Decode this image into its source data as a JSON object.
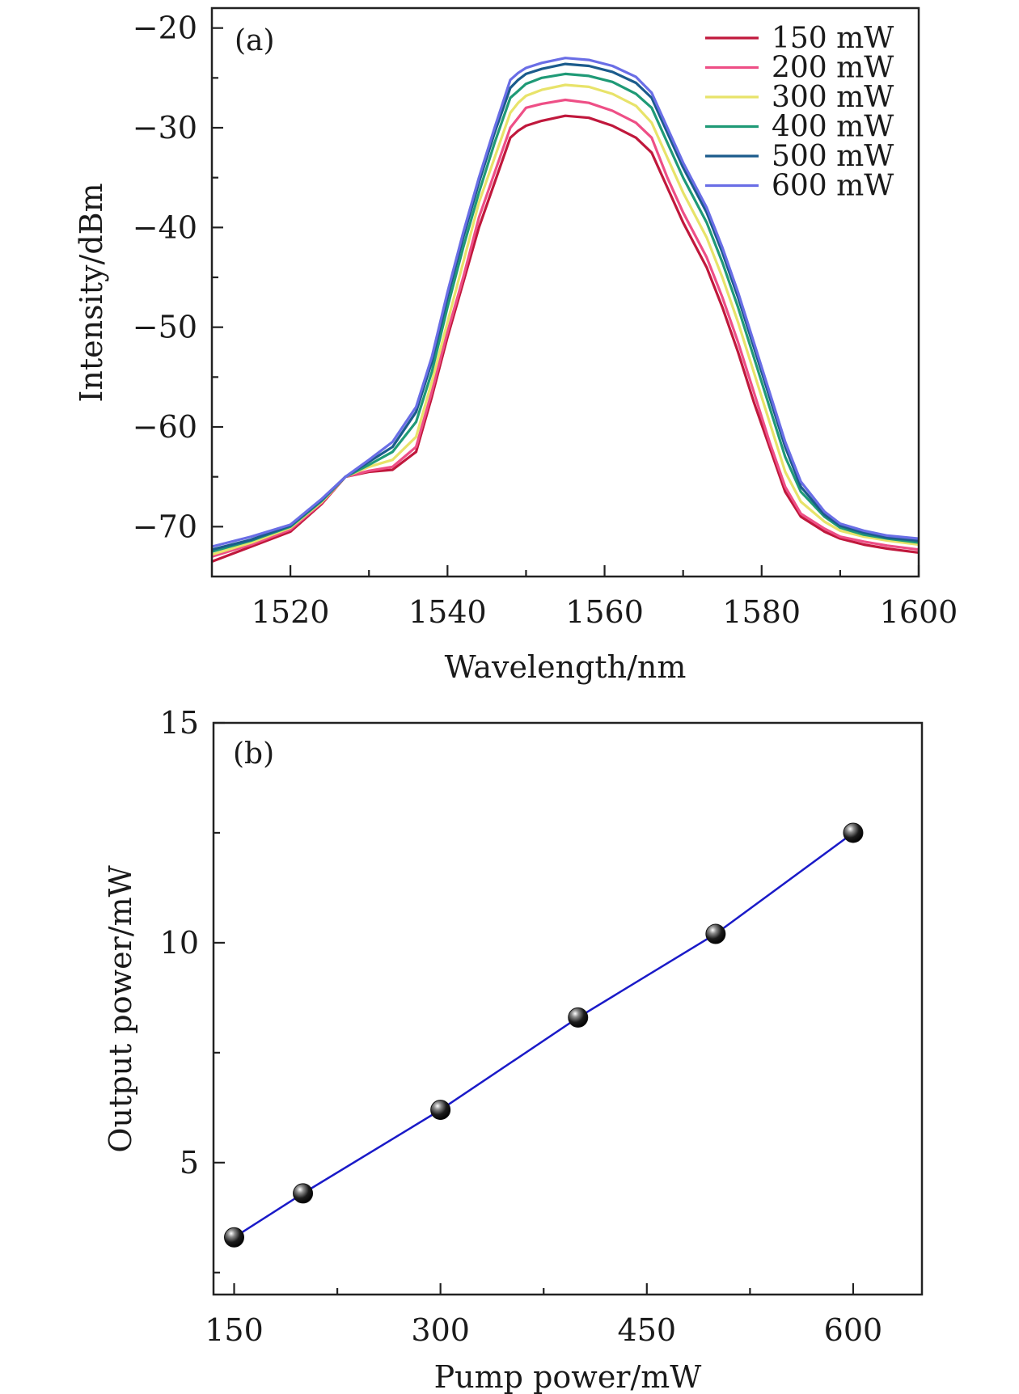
{
  "chart_data": [
    {
      "type": "line",
      "panel_label": "(a)",
      "xlabel": "Wavelength/nm",
      "ylabel": "Intensity/dBm",
      "xlim": [
        1510,
        1600
      ],
      "ylim": [
        -75,
        -18
      ],
      "x_ticks": [
        1520,
        1540,
        1560,
        1580,
        1600
      ],
      "x_tick_labels": [
        "1520",
        "1540",
        "1560",
        "1580",
        "1600"
      ],
      "y_ticks": [
        -20,
        -30,
        -40,
        -50,
        -60,
        -70
      ],
      "y_tick_labels": [
        "−20",
        "−30",
        "−40",
        "−50",
        "−60",
        "−70"
      ],
      "legend_position": "top-right",
      "x": [
        1510,
        1515,
        1520,
        1524,
        1527,
        1530,
        1533,
        1536,
        1538,
        1540,
        1542,
        1544,
        1546,
        1548,
        1549,
        1550,
        1552,
        1555,
        1558,
        1561,
        1564,
        1566,
        1568,
        1570,
        1573,
        1575,
        1577,
        1579,
        1581,
        1583,
        1585,
        1588,
        1590,
        1593,
        1596,
        1600
      ],
      "series": [
        {
          "name": "150 mW",
          "color": "#c0183c",
          "values": [
            -73.5,
            -72.0,
            -70.5,
            -67.7,
            -65.0,
            -64.5,
            -64.3,
            -62.5,
            -57.0,
            -51.0,
            -45.5,
            -40.0,
            -35.5,
            -31.0,
            -30.3,
            -29.8,
            -29.3,
            -28.8,
            -29.0,
            -29.8,
            -31.0,
            -32.5,
            -36.0,
            -39.5,
            -44.0,
            -48.0,
            -52.5,
            -57.5,
            -62.0,
            -66.5,
            -69.0,
            -70.5,
            -71.2,
            -71.8,
            -72.2,
            -72.6
          ]
        },
        {
          "name": "200 mW",
          "color": "#ee4f86",
          "values": [
            -73.0,
            -71.8,
            -70.3,
            -67.6,
            -65.0,
            -64.4,
            -64.0,
            -62.0,
            -56.5,
            -50.5,
            -45.0,
            -39.0,
            -34.5,
            -30.0,
            -29.0,
            -28.0,
            -27.6,
            -27.2,
            -27.5,
            -28.3,
            -29.5,
            -31.0,
            -35.0,
            -38.5,
            -43.0,
            -47.0,
            -51.5,
            -56.5,
            -61.5,
            -66.0,
            -68.7,
            -70.2,
            -71.0,
            -71.5,
            -71.9,
            -72.3
          ]
        },
        {
          "name": "300 mW",
          "color": "#e8e36a",
          "values": [
            -72.8,
            -71.6,
            -70.1,
            -67.5,
            -65.0,
            -64.0,
            -63.3,
            -61.0,
            -55.5,
            -49.5,
            -43.5,
            -37.5,
            -33.0,
            -28.5,
            -27.5,
            -26.8,
            -26.2,
            -25.7,
            -25.9,
            -26.6,
            -27.8,
            -29.5,
            -33.0,
            -36.5,
            -41.0,
            -45.0,
            -49.5,
            -54.5,
            -59.5,
            -64.5,
            -67.5,
            -69.5,
            -70.4,
            -71.0,
            -71.4,
            -71.8
          ]
        },
        {
          "name": "400 mW",
          "color": "#1f9a76",
          "values": [
            -72.5,
            -71.4,
            -70.0,
            -67.4,
            -65.0,
            -63.8,
            -62.5,
            -59.5,
            -54.5,
            -48.0,
            -42.0,
            -36.5,
            -31.5,
            -27.0,
            -26.3,
            -25.6,
            -25.0,
            -24.6,
            -24.8,
            -25.4,
            -26.6,
            -28.0,
            -31.5,
            -35.0,
            -39.5,
            -43.5,
            -48.0,
            -53.0,
            -58.0,
            -63.0,
            -66.5,
            -69.0,
            -70.1,
            -70.8,
            -71.2,
            -71.6
          ]
        },
        {
          "name": "500 mW",
          "color": "#1b5b8c",
          "values": [
            -72.3,
            -71.3,
            -69.9,
            -67.3,
            -65.0,
            -63.5,
            -62.0,
            -58.5,
            -53.5,
            -47.0,
            -41.0,
            -35.5,
            -30.5,
            -26.0,
            -25.2,
            -24.6,
            -24.1,
            -23.6,
            -23.8,
            -24.4,
            -25.5,
            -27.0,
            -30.5,
            -34.0,
            -38.5,
            -42.5,
            -47.0,
            -52.0,
            -57.0,
            -62.0,
            -66.0,
            -68.8,
            -69.9,
            -70.6,
            -71.1,
            -71.4
          ]
        },
        {
          "name": "600 mW",
          "color": "#6a6ee6",
          "values": [
            -72.0,
            -71.0,
            -69.8,
            -67.2,
            -65.0,
            -63.3,
            -61.5,
            -58.0,
            -53.0,
            -46.5,
            -40.5,
            -35.0,
            -30.0,
            -25.2,
            -24.5,
            -24.0,
            -23.5,
            -23.0,
            -23.2,
            -23.8,
            -24.9,
            -26.5,
            -30.0,
            -33.5,
            -38.0,
            -42.0,
            -46.5,
            -51.5,
            -56.5,
            -61.5,
            -65.5,
            -68.5,
            -69.7,
            -70.4,
            -70.9,
            -71.2
          ]
        }
      ]
    },
    {
      "type": "scatter",
      "panel_label": "(b)",
      "xlabel": "Pump power/mW",
      "ylabel": "Output power/mW",
      "xlim": [
        135,
        650
      ],
      "ylim": [
        2,
        15
      ],
      "x_ticks": [
        150,
        300,
        450,
        600
      ],
      "x_tick_labels": [
        "150",
        "300",
        "450",
        "600"
      ],
      "y_ticks": [
        5,
        10,
        15
      ],
      "y_tick_labels": [
        "5",
        "10",
        "15"
      ],
      "line_color": "#1a1ac8",
      "marker_color": "#111111",
      "x": [
        150,
        200,
        300,
        400,
        500,
        600
      ],
      "y": [
        3.3,
        4.3,
        6.2,
        8.3,
        10.2,
        12.5
      ]
    }
  ]
}
